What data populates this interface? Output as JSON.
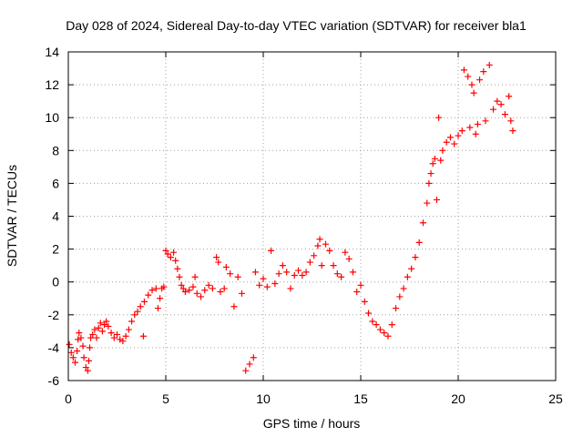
{
  "chart_data": {
    "type": "scatter",
    "title": "Day 028 of 2024, Sidereal Day-to-day VTEC variation (SDTVAR) for receiver bla1",
    "xlabel": "GPS time / hours",
    "ylabel": "SDTVAR / TECUs",
    "xlim": [
      0,
      25
    ],
    "ylim": [
      -6,
      14
    ],
    "xticks": [
      "0",
      "5",
      "10",
      "15",
      "20",
      "25"
    ],
    "yticks": [
      "-6",
      "-4",
      "-2",
      "0",
      "2",
      "4",
      "6",
      "8",
      "10",
      "12",
      "14"
    ],
    "grid": true,
    "marker": "+",
    "color": "#ff0000",
    "series": [
      {
        "name": "SDTVAR",
        "points": [
          [
            0.05,
            -3.8
          ],
          [
            0.15,
            -4.3
          ],
          [
            0.25,
            -4.6
          ],
          [
            0.35,
            -4.9
          ],
          [
            0.45,
            -4.2
          ],
          [
            0.5,
            -3.5
          ],
          [
            0.55,
            -3.1
          ],
          [
            0.65,
            -3.4
          ],
          [
            0.75,
            -3.9
          ],
          [
            0.8,
            -4.6
          ],
          [
            0.9,
            -5.2
          ],
          [
            1.0,
            -5.4
          ],
          [
            1.05,
            -4.8
          ],
          [
            1.1,
            -4.0
          ],
          [
            1.15,
            -3.4
          ],
          [
            1.25,
            -3.2
          ],
          [
            1.35,
            -2.9
          ],
          [
            1.45,
            -3.4
          ],
          [
            1.55,
            -2.8
          ],
          [
            1.65,
            -2.5
          ],
          [
            1.75,
            -3.0
          ],
          [
            1.85,
            -2.6
          ],
          [
            1.95,
            -2.4
          ],
          [
            2.05,
            -2.7
          ],
          [
            2.2,
            -3.1
          ],
          [
            2.35,
            -3.4
          ],
          [
            2.5,
            -3.2
          ],
          [
            2.65,
            -3.5
          ],
          [
            2.8,
            -3.6
          ],
          [
            2.95,
            -3.3
          ],
          [
            3.1,
            -2.9
          ],
          [
            3.25,
            -2.4
          ],
          [
            3.4,
            -2.0
          ],
          [
            3.55,
            -1.8
          ],
          [
            3.7,
            -1.5
          ],
          [
            3.85,
            -3.3
          ],
          [
            3.9,
            -1.2
          ],
          [
            4.1,
            -0.8
          ],
          [
            4.3,
            -0.5
          ],
          [
            4.5,
            -0.4
          ],
          [
            4.6,
            -1.6
          ],
          [
            4.7,
            -1.0
          ],
          [
            4.8,
            -0.4
          ],
          [
            4.9,
            -0.3
          ],
          [
            5.0,
            1.9
          ],
          [
            5.1,
            1.7
          ],
          [
            5.25,
            1.5
          ],
          [
            5.4,
            1.8
          ],
          [
            5.5,
            1.3
          ],
          [
            5.6,
            0.8
          ],
          [
            5.7,
            0.3
          ],
          [
            5.8,
            -0.2
          ],
          [
            5.9,
            -0.4
          ],
          [
            6.0,
            -0.6
          ],
          [
            6.2,
            -0.5
          ],
          [
            6.4,
            -0.3
          ],
          [
            6.5,
            0.3
          ],
          [
            6.6,
            -0.7
          ],
          [
            6.8,
            -0.9
          ],
          [
            7.0,
            -0.5
          ],
          [
            7.2,
            -0.2
          ],
          [
            7.4,
            -0.4
          ],
          [
            7.6,
            1.5
          ],
          [
            7.7,
            1.2
          ],
          [
            7.8,
            -0.6
          ],
          [
            8.0,
            -0.4
          ],
          [
            8.1,
            0.9
          ],
          [
            8.3,
            0.5
          ],
          [
            8.5,
            -1.5
          ],
          [
            8.7,
            0.3
          ],
          [
            8.9,
            -0.7
          ],
          [
            9.1,
            -5.4
          ],
          [
            9.3,
            -5.0
          ],
          [
            9.5,
            -4.6
          ],
          [
            9.6,
            0.6
          ],
          [
            9.8,
            -0.2
          ],
          [
            10.0,
            0.2
          ],
          [
            10.2,
            -0.3
          ],
          [
            10.4,
            1.9
          ],
          [
            10.6,
            -0.1
          ],
          [
            10.8,
            0.5
          ],
          [
            11.0,
            1.0
          ],
          [
            11.2,
            0.6
          ],
          [
            11.4,
            -0.4
          ],
          [
            11.6,
            0.4
          ],
          [
            11.8,
            0.7
          ],
          [
            12.0,
            0.4
          ],
          [
            12.2,
            0.6
          ],
          [
            12.4,
            1.2
          ],
          [
            12.6,
            1.6
          ],
          [
            12.8,
            2.2
          ],
          [
            12.9,
            2.6
          ],
          [
            13.0,
            1.0
          ],
          [
            13.2,
            2.3
          ],
          [
            13.4,
            1.9
          ],
          [
            13.6,
            1.0
          ],
          [
            13.8,
            0.5
          ],
          [
            14.0,
            0.3
          ],
          [
            14.2,
            1.8
          ],
          [
            14.4,
            1.4
          ],
          [
            14.6,
            0.6
          ],
          [
            14.8,
            -0.6
          ],
          [
            15.0,
            -0.2
          ],
          [
            15.2,
            -1.2
          ],
          [
            15.4,
            -1.9
          ],
          [
            15.6,
            -2.4
          ],
          [
            15.8,
            -2.6
          ],
          [
            16.0,
            -2.9
          ],
          [
            16.2,
            -3.1
          ],
          [
            16.4,
            -3.3
          ],
          [
            16.6,
            -2.6
          ],
          [
            16.8,
            -1.6
          ],
          [
            17.0,
            -0.9
          ],
          [
            17.2,
            -0.4
          ],
          [
            17.4,
            0.3
          ],
          [
            17.6,
            0.8
          ],
          [
            17.8,
            1.5
          ],
          [
            18.0,
            2.4
          ],
          [
            18.2,
            3.6
          ],
          [
            18.4,
            4.8
          ],
          [
            18.5,
            6.0
          ],
          [
            18.6,
            6.6
          ],
          [
            18.7,
            7.2
          ],
          [
            18.8,
            7.5
          ],
          [
            18.9,
            5.0
          ],
          [
            19.0,
            10.0
          ],
          [
            19.1,
            7.4
          ],
          [
            19.2,
            8.0
          ],
          [
            19.4,
            8.5
          ],
          [
            19.6,
            8.8
          ],
          [
            19.8,
            8.4
          ],
          [
            20.0,
            8.9
          ],
          [
            20.2,
            9.2
          ],
          [
            20.3,
            12.9
          ],
          [
            20.5,
            12.5
          ],
          [
            20.6,
            9.4
          ],
          [
            20.7,
            12.0
          ],
          [
            20.8,
            11.5
          ],
          [
            20.9,
            9.0
          ],
          [
            21.0,
            9.6
          ],
          [
            21.1,
            12.3
          ],
          [
            21.3,
            12.8
          ],
          [
            21.4,
            9.8
          ],
          [
            21.6,
            13.2
          ],
          [
            21.8,
            10.5
          ],
          [
            22.0,
            11.0
          ],
          [
            22.2,
            10.8
          ],
          [
            22.4,
            10.2
          ],
          [
            22.6,
            11.3
          ],
          [
            22.7,
            9.8
          ],
          [
            22.8,
            9.2
          ]
        ]
      }
    ]
  }
}
